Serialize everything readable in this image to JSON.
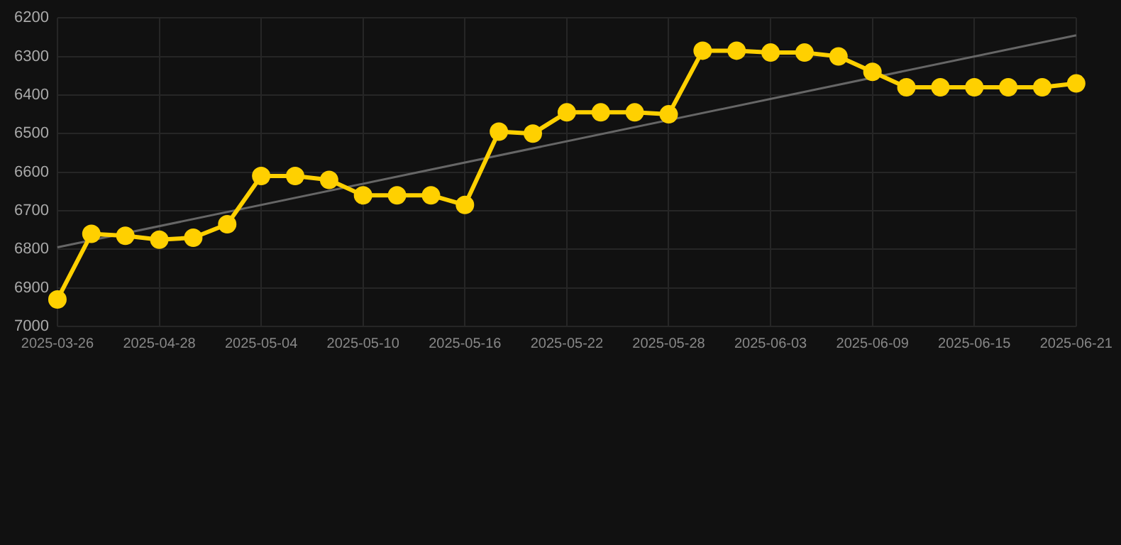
{
  "chart_data": {
    "type": "line",
    "categories": [
      "2025-03-26",
      null,
      null,
      "2025-04-28",
      null,
      null,
      "2025-05-04",
      null,
      null,
      "2025-05-10",
      null,
      null,
      "2025-05-16",
      null,
      null,
      "2025-05-22",
      null,
      null,
      "2025-05-28",
      null,
      null,
      "2025-06-03",
      null,
      null,
      "2025-06-09",
      null,
      null,
      "2025-06-15",
      null,
      null,
      "2025-06-21"
    ],
    "series": [
      {
        "type": "line",
        "color": "#ffd000",
        "marker": "circle",
        "values": [
          6930,
          6760,
          6765,
          6775,
          6770,
          6735,
          6610,
          6610,
          6620,
          6660,
          6660,
          6660,
          6685,
          6495,
          6500,
          6445,
          6445,
          6445,
          6450,
          6285,
          6285,
          6290,
          6290,
          6300,
          6340,
          6380,
          6380,
          6380,
          6380,
          6380,
          6370
        ]
      },
      {
        "type": "line",
        "color": "#666666",
        "marker": "none",
        "values": [
          6795,
          null,
          null,
          null,
          null,
          null,
          null,
          null,
          null,
          null,
          null,
          null,
          null,
          null,
          null,
          null,
          null,
          null,
          null,
          null,
          null,
          null,
          null,
          null,
          null,
          null,
          null,
          null,
          null,
          null,
          6245
        ]
      }
    ],
    "ylim": [
      7000,
      6200
    ],
    "yticks": [
      6200,
      6300,
      6400,
      6500,
      6600,
      6700,
      6800,
      6900,
      7000
    ],
    "grid": true,
    "legend": false
  }
}
